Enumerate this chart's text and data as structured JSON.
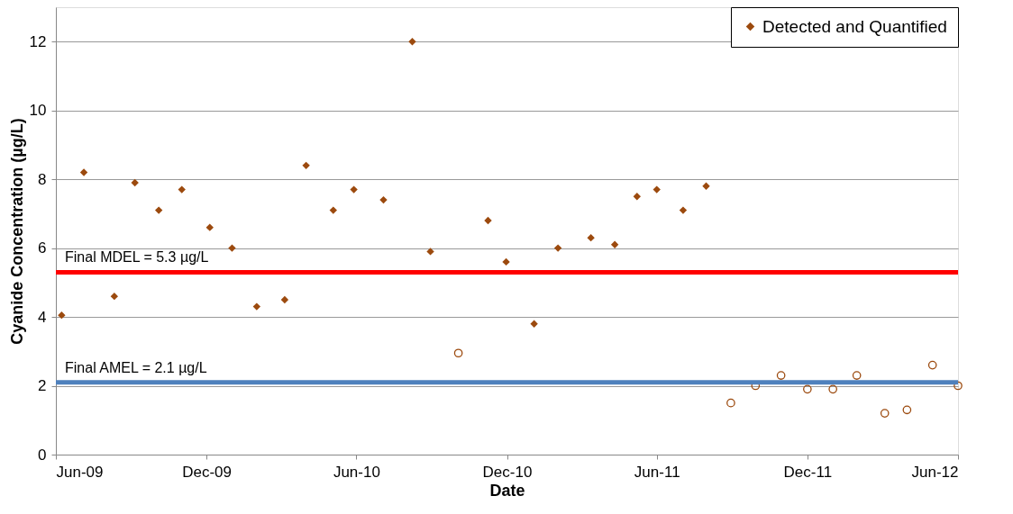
{
  "chart_data": {
    "type": "scatter",
    "xlabel": "Date",
    "ylabel": "Cyanide Concentration (µg/L)",
    "xlim": [
      "2009-06-01",
      "2012-06-01"
    ],
    "ylim": [
      0,
      13
    ],
    "xticks": [
      {
        "value": "2009-06-01",
        "label": "Jun-09"
      },
      {
        "value": "2009-12-01",
        "label": "Dec-09"
      },
      {
        "value": "2010-06-01",
        "label": "Jun-10"
      },
      {
        "value": "2010-12-01",
        "label": "Dec-10"
      },
      {
        "value": "2011-06-01",
        "label": "Jun-11"
      },
      {
        "value": "2011-12-01",
        "label": "Dec-11"
      },
      {
        "value": "2012-06-01",
        "label": "Jun-12"
      }
    ],
    "yticks": [
      0,
      2,
      4,
      6,
      8,
      10,
      12
    ],
    "grid": "y",
    "legend": "top right",
    "series": [
      {
        "name": "Detected and Quantified",
        "color": "#9c4a0e",
        "marker": "diamond",
        "x": [
          "2009-06-08",
          "2009-07-05",
          "2009-08-11",
          "2009-09-05",
          "2009-10-04",
          "2009-11-01",
          "2009-12-05",
          "2010-01-01",
          "2010-01-31",
          "2010-03-06",
          "2010-04-01",
          "2010-05-04",
          "2010-05-29",
          "2010-07-04",
          "2010-08-08",
          "2010-08-30",
          "2010-11-08",
          "2010-11-30",
          "2011-01-03",
          "2011-02-01",
          "2011-03-13",
          "2011-04-11",
          "2011-05-08",
          "2011-06-01",
          "2011-07-03",
          "2011-07-31"
        ],
        "values": [
          4.05,
          8.2,
          4.6,
          7.9,
          7.1,
          7.7,
          6.6,
          6.0,
          4.3,
          4.5,
          8.4,
          7.1,
          7.7,
          7.4,
          12.0,
          5.9,
          6.8,
          5.6,
          3.8,
          6.0,
          6.3,
          6.1,
          7.5,
          7.7,
          7.1,
          7.8
        ]
      },
      {
        "color": "#9c4a0e",
        "marker": "circle",
        "x": [
          "2010-10-03",
          "2011-08-30",
          "2011-09-29",
          "2011-10-30",
          "2011-12-01",
          "2012-01-01",
          "2012-01-30",
          "2012-03-04",
          "2012-03-31",
          "2012-05-01",
          "2012-06-01"
        ],
        "values": [
          2.95,
          1.5,
          2.0,
          2.3,
          1.9,
          1.9,
          2.3,
          1.2,
          1.3,
          2.6,
          2.0
        ]
      }
    ],
    "ref_lines": [
      {
        "axis": "y",
        "value": 5.3,
        "label": "Final MDEL = 5.3 µg/L",
        "color": "#ff0000"
      },
      {
        "axis": "y",
        "value": 2.1,
        "label": "Final AMEL = 2.1 µg/L",
        "color": "#4f81bd"
      }
    ]
  }
}
